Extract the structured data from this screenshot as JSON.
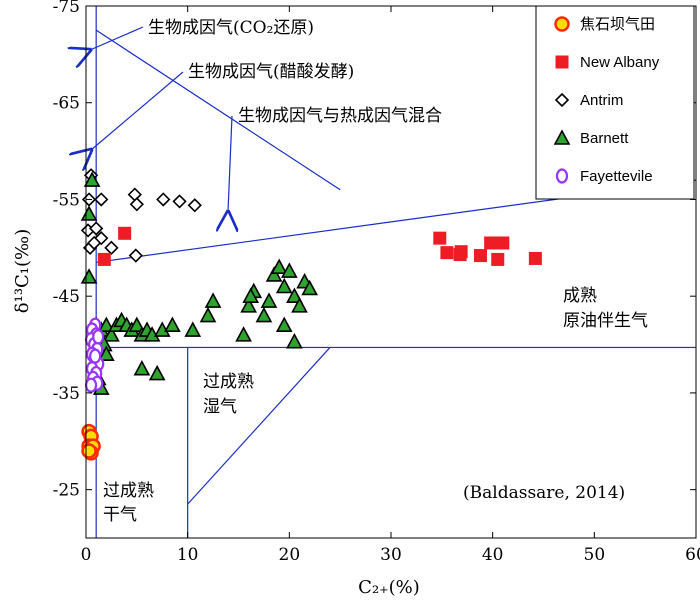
{
  "chart_data": {
    "type": "scatter",
    "xlabel": "C₂₊(%)",
    "ylabel": "δ¹³C₁(‰)",
    "xlim": [
      0,
      60
    ],
    "ylim": [
      -20,
      -75
    ],
    "x_ticks": [
      0,
      10,
      20,
      30,
      40,
      50,
      60
    ],
    "y_ticks": [
      -25,
      -35,
      -45,
      -55,
      -65,
      -75
    ],
    "legend_position": "top-right",
    "citation": "(Baldassare, 2014)",
    "region_labels": [
      {
        "lines": [
          "过成熟",
          "干气"
        ]
      },
      {
        "lines": [
          "过成熟",
          "湿气"
        ]
      },
      {
        "lines": [
          "成熟",
          "原油伴生气"
        ]
      }
    ],
    "arrow_labels": [
      "生物成因气(CO₂还原)",
      "生物成因气(醋酸发酵)",
      "生物成因气与热成因气混合"
    ],
    "series": [
      {
        "name": "焦石坝气田",
        "marker": "circle",
        "fill": "#ffdd00",
        "stroke": "#ff2a00",
        "points": [
          [
            0.3,
            -31
          ],
          [
            0.5,
            -30.5
          ],
          [
            0.3,
            -29.5
          ],
          [
            0.7,
            -29.5
          ],
          [
            0.5,
            -28.8
          ],
          [
            0.3,
            -29
          ]
        ]
      },
      {
        "name": "New Albany",
        "marker": "square",
        "fill": "#ee1c25",
        "stroke": "#ee1c25",
        "points": [
          [
            1.8,
            -48.8
          ],
          [
            3.8,
            -51.5
          ],
          [
            34.8,
            -51
          ],
          [
            35.5,
            -49.5
          ],
          [
            36.8,
            -49.3
          ],
          [
            36.9,
            -49.6
          ],
          [
            38.8,
            -49.2
          ],
          [
            39.8,
            -50.5
          ],
          [
            40.5,
            -48.8
          ],
          [
            41,
            -50.5
          ],
          [
            44.2,
            -48.9
          ]
        ]
      },
      {
        "name": "Antrim",
        "marker": "diamond",
        "fill": "#ffffff",
        "stroke": "#000000",
        "points": [
          [
            0.5,
            -57.5
          ],
          [
            0.3,
            -55
          ],
          [
            1.5,
            -55
          ],
          [
            4.8,
            -55.5
          ],
          [
            5,
            -54.5
          ],
          [
            7.6,
            -55
          ],
          [
            9.2,
            -54.8
          ],
          [
            10.7,
            -54.4
          ],
          [
            0.2,
            -51.8
          ],
          [
            1,
            -52
          ],
          [
            1.5,
            -51
          ],
          [
            2.5,
            -50
          ],
          [
            4.9,
            -49.2
          ],
          [
            0.4,
            -50
          ],
          [
            0.8,
            -50.5
          ]
        ]
      },
      {
        "name": "Barnett",
        "marker": "triangle",
        "fill": "#2ea32e",
        "stroke": "#000000",
        "points": [
          [
            0.3,
            -53.5
          ],
          [
            0.6,
            -57
          ],
          [
            0.3,
            -47
          ],
          [
            1,
            -42
          ],
          [
            1.5,
            -41.5
          ],
          [
            2,
            -42
          ],
          [
            2.5,
            -41
          ],
          [
            3,
            -42
          ],
          [
            3.5,
            -42.5
          ],
          [
            4,
            -42
          ],
          [
            4.5,
            -41.5
          ],
          [
            5,
            -42
          ],
          [
            5.5,
            -41
          ],
          [
            6,
            -41.5
          ],
          [
            6.5,
            -41
          ],
          [
            7.5,
            -41.5
          ],
          [
            8.5,
            -42
          ],
          [
            10.5,
            -41.5
          ],
          [
            12,
            -43
          ],
          [
            12.5,
            -44.5
          ],
          [
            15.5,
            -41
          ],
          [
            16,
            -44
          ],
          [
            16.5,
            -45.5
          ],
          [
            16.2,
            -45
          ],
          [
            17.5,
            -43
          ],
          [
            18.5,
            -47.2
          ],
          [
            19,
            -48
          ],
          [
            19.5,
            -46
          ],
          [
            20,
            -47.6
          ],
          [
            20.5,
            -45
          ],
          [
            21,
            -44
          ],
          [
            21.5,
            -46.5
          ],
          [
            22,
            -45.8
          ],
          [
            18,
            -44.5
          ],
          [
            19.5,
            -42
          ],
          [
            20.5,
            -40.3
          ],
          [
            5.5,
            -37.5
          ],
          [
            7,
            -37
          ],
          [
            1.5,
            -35.5
          ],
          [
            1.2,
            -36.5
          ],
          [
            1.8,
            -40
          ],
          [
            2,
            -39
          ]
        ]
      },
      {
        "name": "Fayettevile",
        "marker": "oval",
        "fill": "#ffffff",
        "stroke": "#9933ff",
        "points": [
          [
            0.9,
            -42
          ],
          [
            0.6,
            -41.5
          ],
          [
            1,
            -41
          ],
          [
            0.5,
            -40.5
          ],
          [
            0.8,
            -40
          ],
          [
            1.1,
            -39.5
          ],
          [
            0.6,
            -39
          ],
          [
            0.9,
            -38.5
          ],
          [
            1.2,
            -38
          ],
          [
            0.6,
            -37.5
          ],
          [
            1,
            -37
          ],
          [
            0.7,
            -36.5
          ],
          [
            1.1,
            -36
          ],
          [
            0.5,
            -35.8
          ],
          [
            0.9,
            -38.8
          ],
          [
            1.2,
            -40.8
          ]
        ]
      }
    ]
  }
}
